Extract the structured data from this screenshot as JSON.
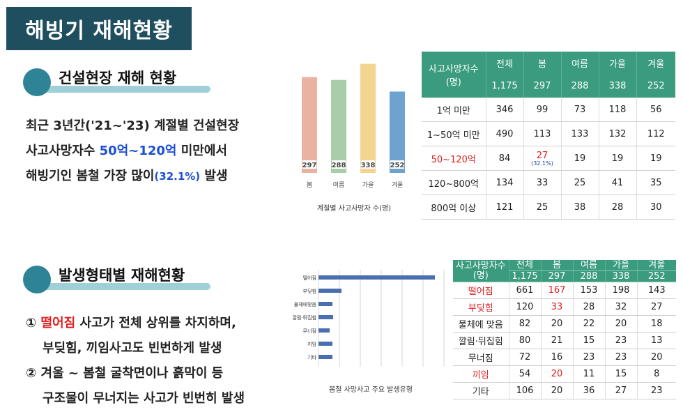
{
  "page_title": "해빙기 재해현황",
  "section1": {
    "heading": "건설현장 재해 현황",
    "line1": "최근 3년간('21~'23) 계절별 건설현장",
    "line2_a": "사고사망자수 ",
    "line2_b": "50억~120억",
    "line2_c": " 미만에서",
    "line3_a": "해빙기인 봄철 가장 많이",
    "line3_b": "(32.1%)",
    "line3_c": " 발생"
  },
  "section2": {
    "heading": "발생형태별 재해현황",
    "item1_num": "①",
    "item1_a": " 떨어짐",
    "item1_b": " 사고가 전체 상위를 차지하며,",
    "item1_line2": "부딪힘, 끼임사고도 빈번하게 발생",
    "item2_num": "②",
    "item2_line1": " 겨울 ~ 봄철 굴착면이나 흙막이 등",
    "item2_line2": "구조물이 무너지는 사고가 빈번히 발생"
  },
  "colors": {
    "title_bg": "#1f4e5f",
    "table_header": "#3a9b7e",
    "highlight_red": "#e02020",
    "highlight_blue": "#1c4fd1",
    "bar_spring": "#eab3a1",
    "bar_summer": "#a9cda8",
    "bar_autumn": "#f2d58f",
    "bar_winter": "#6ea2cf",
    "hbar": "#4a6fb0"
  },
  "chart_data": [
    {
      "type": "bar",
      "title": "계절별 사고사망자 수(명)",
      "categories": [
        "봄",
        "여름",
        "가을",
        "겨울"
      ],
      "values": [
        297,
        288,
        338,
        252
      ],
      "data_labels": [
        "297",
        "288",
        "338",
        "252"
      ],
      "ylim": [
        0,
        350
      ],
      "grid": false,
      "legend": "none"
    },
    {
      "type": "bar",
      "orientation": "horizontal",
      "title": "봄철 사망사고 주요 발생유형",
      "categories": [
        "떨어짐",
        "부딪힘",
        "물체에맞음",
        "깔림·뒤집힘",
        "무너짐",
        "끼임",
        "기타"
      ],
      "values": [
        167,
        33,
        20,
        21,
        16,
        20,
        20
      ],
      "xlim": [
        0,
        180
      ],
      "grid": true,
      "legend": "none"
    },
    {
      "type": "table",
      "header_label": "사고사망자수\n(명)",
      "columns": [
        "전체",
        "봄",
        "여름",
        "가을",
        "겨울"
      ],
      "totals": [
        "1,175",
        "297",
        "288",
        "338",
        "252"
      ],
      "rows": [
        {
          "label": "1억 미만",
          "values": [
            "346",
            "99",
            "73",
            "118",
            "56"
          ],
          "highlight": false
        },
        {
          "label": "1~50억 미만",
          "values": [
            "490",
            "113",
            "133",
            "132",
            "112"
          ],
          "highlight": false
        },
        {
          "label": "50~120억",
          "values": [
            "84",
            "27",
            "19",
            "19",
            "19"
          ],
          "highlight": true,
          "note": "(32.1%)"
        },
        {
          "label": "120~800억",
          "values": [
            "134",
            "33",
            "25",
            "41",
            "35"
          ],
          "highlight": false
        },
        {
          "label": "800억 이상",
          "values": [
            "121",
            "25",
            "38",
            "28",
            "30"
          ],
          "highlight": false
        }
      ]
    },
    {
      "type": "table",
      "header_label": "사고사망자수\n(명)",
      "columns": [
        "전체",
        "봄",
        "여름",
        "가을",
        "겨울"
      ],
      "totals": [
        "1,175",
        "297",
        "288",
        "338",
        "252"
      ],
      "rows": [
        {
          "label": "떨어짐",
          "values": [
            "661",
            "167",
            "153",
            "198",
            "143"
          ],
          "highlight": true
        },
        {
          "label": "부딪힘",
          "values": [
            "120",
            "33",
            "28",
            "32",
            "27"
          ],
          "highlight": true
        },
        {
          "label": "물체에 맞음",
          "values": [
            "82",
            "20",
            "22",
            "20",
            "18"
          ],
          "highlight": false
        },
        {
          "label": "깔림·뒤집힘",
          "values": [
            "80",
            "21",
            "15",
            "23",
            "13"
          ],
          "highlight": false
        },
        {
          "label": "무너짐",
          "values": [
            "72",
            "16",
            "23",
            "23",
            "20"
          ],
          "highlight": false
        },
        {
          "label": "끼임",
          "values": [
            "54",
            "20",
            "11",
            "15",
            "8"
          ],
          "highlight": true
        },
        {
          "label": "기타",
          "values": [
            "106",
            "20",
            "36",
            "27",
            "23"
          ],
          "highlight": false
        }
      ]
    }
  ]
}
